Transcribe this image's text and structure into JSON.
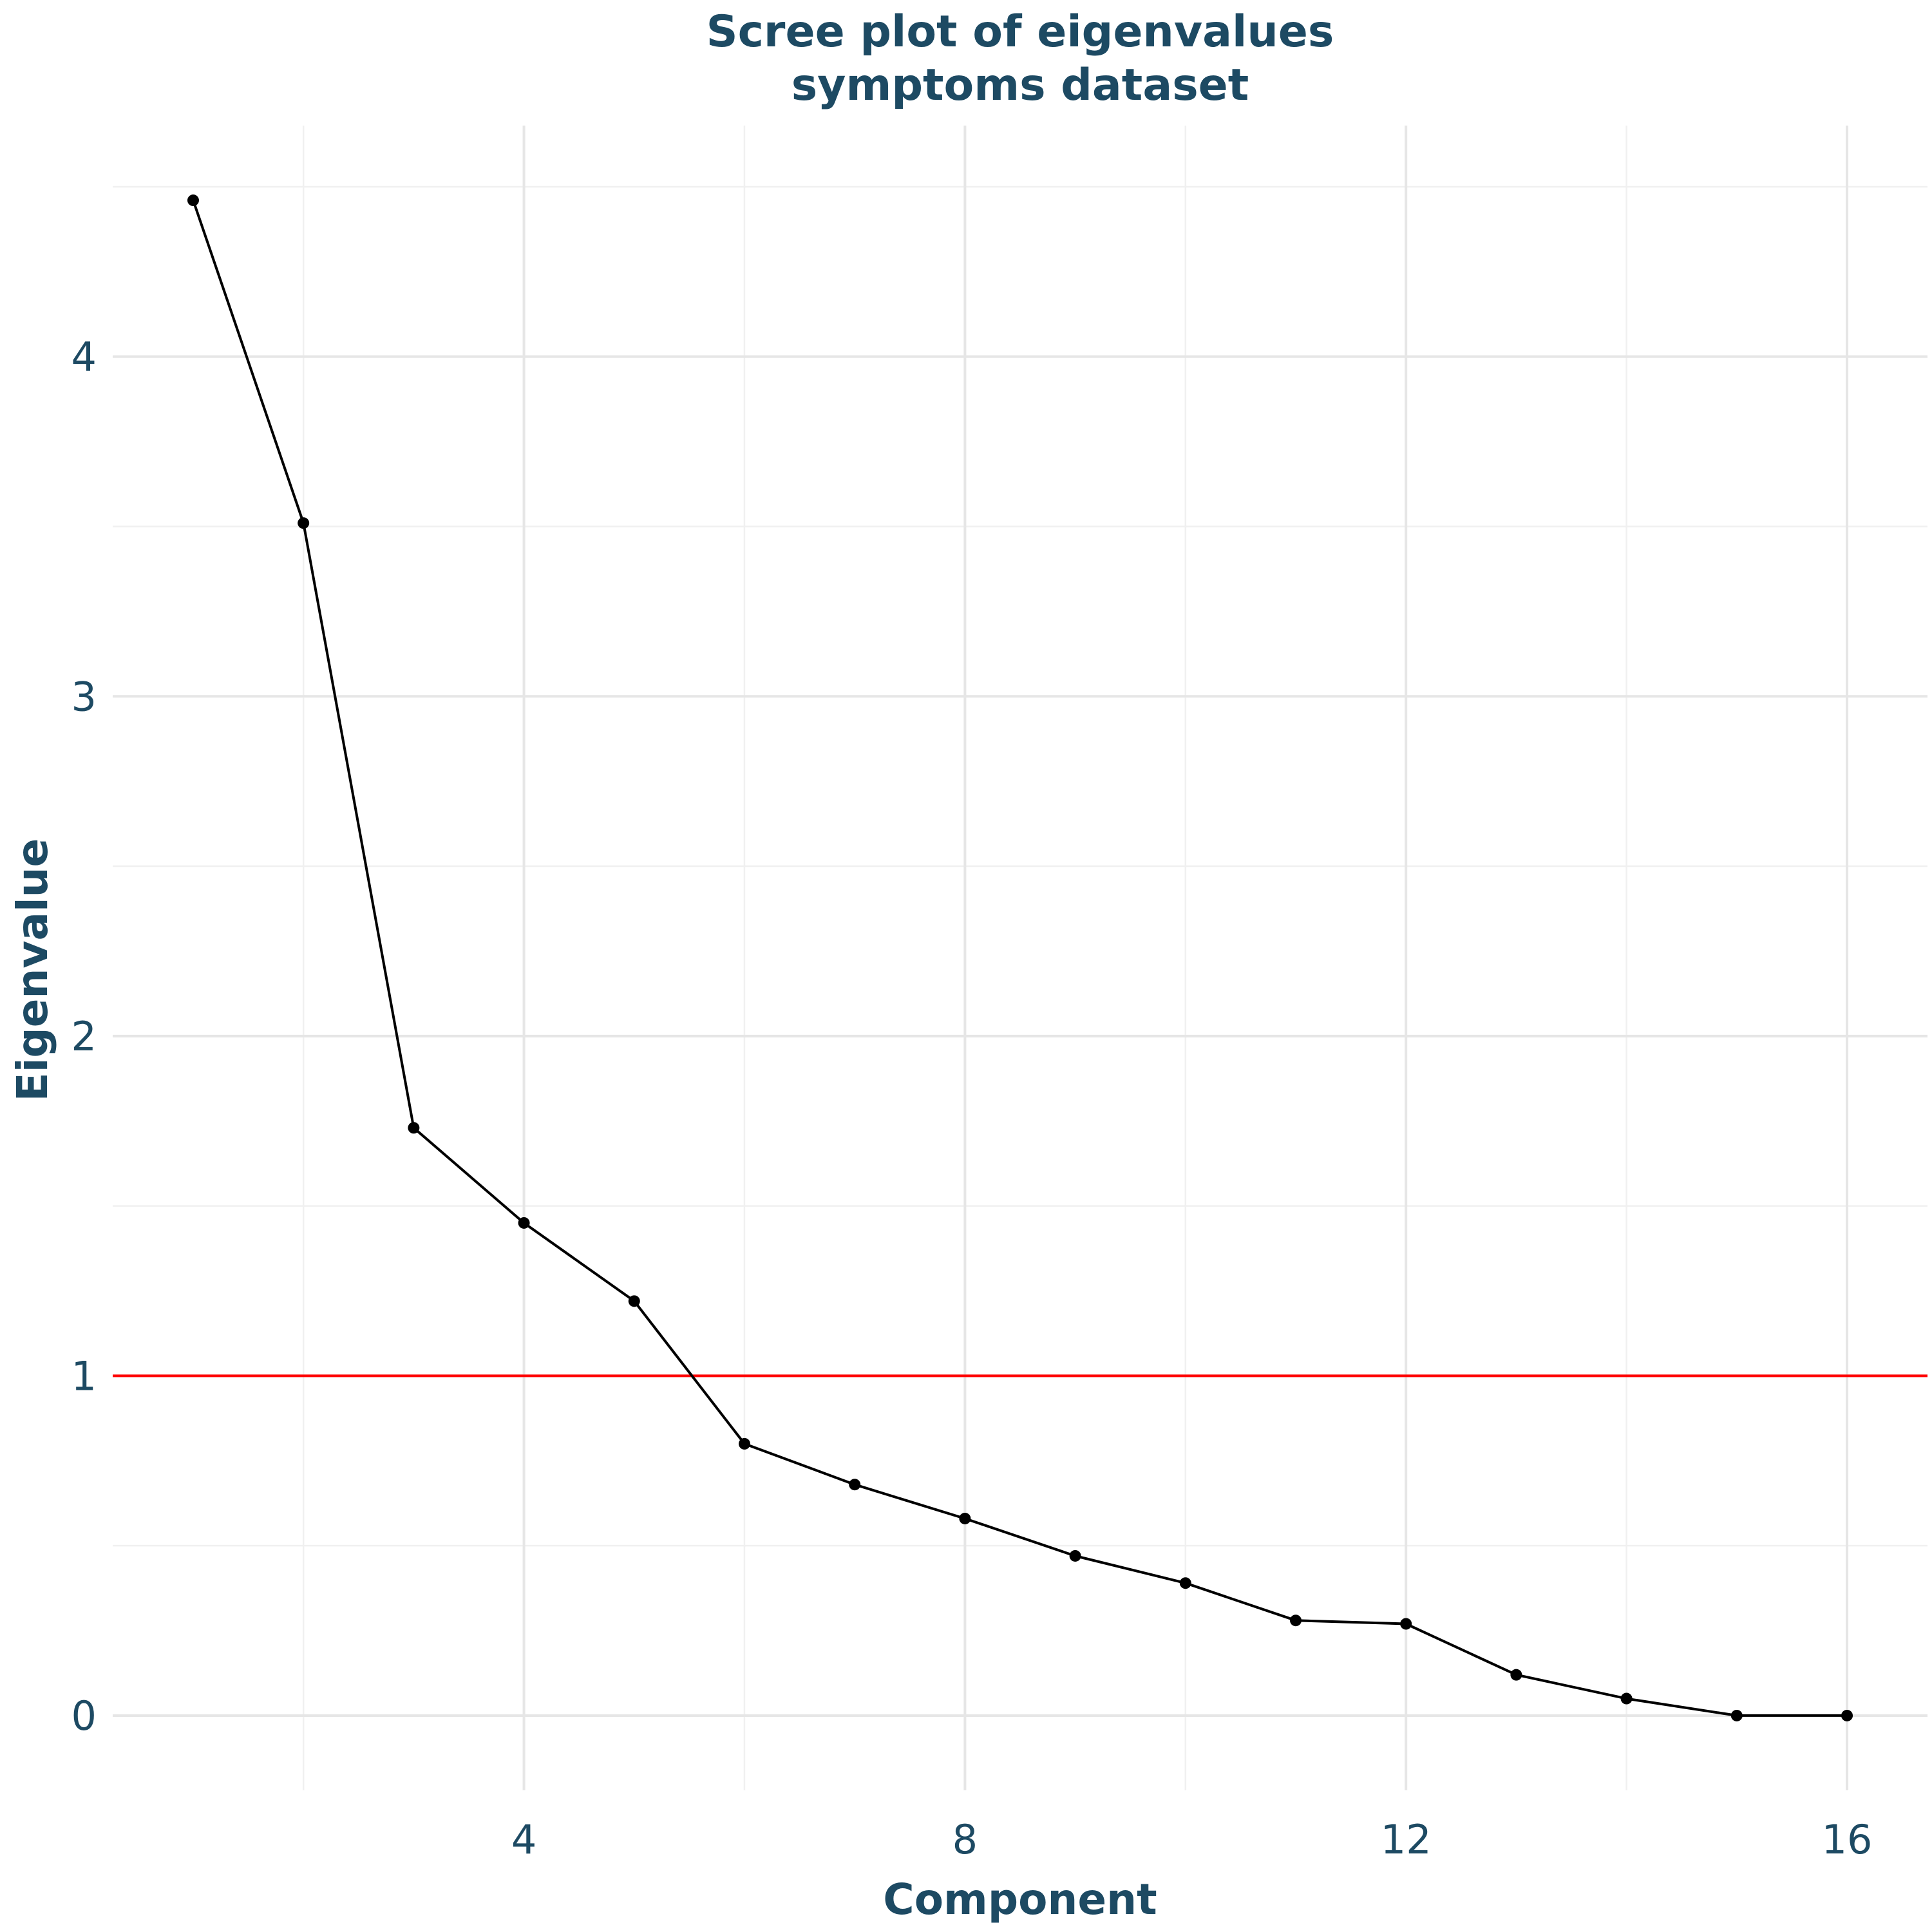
{
  "chart_data": {
    "type": "line",
    "title": [
      "Scree plot of eigenvalues",
      "symptoms dataset"
    ],
    "xlabel": "Component",
    "ylabel": "Eigenvalue",
    "x": [
      1,
      2,
      3,
      4,
      5,
      6,
      7,
      8,
      9,
      10,
      11,
      12,
      13,
      14,
      15,
      16
    ],
    "y": [
      4.46,
      3.51,
      1.73,
      1.45,
      1.22,
      0.8,
      0.68,
      0.58,
      0.47,
      0.39,
      0.28,
      0.27,
      0.12,
      0.05,
      0.0,
      0.0
    ],
    "xlim": [
      0.27,
      16.73
    ],
    "ylim": [
      -0.22,
      4.68
    ],
    "x_ticks": [
      4,
      8,
      12,
      16
    ],
    "x_minor_ticks": [
      2,
      6,
      10,
      14
    ],
    "y_ticks": [
      0,
      1,
      2,
      3,
      4
    ],
    "y_minor_ticks": [
      0.5,
      1.5,
      2.5,
      3.5,
      4.5
    ],
    "reference_line": {
      "y": 1,
      "color": "#ff0000"
    },
    "line_color": "#000000",
    "point_color": "#000000",
    "text_color": "#1d4a63",
    "grid": true
  }
}
